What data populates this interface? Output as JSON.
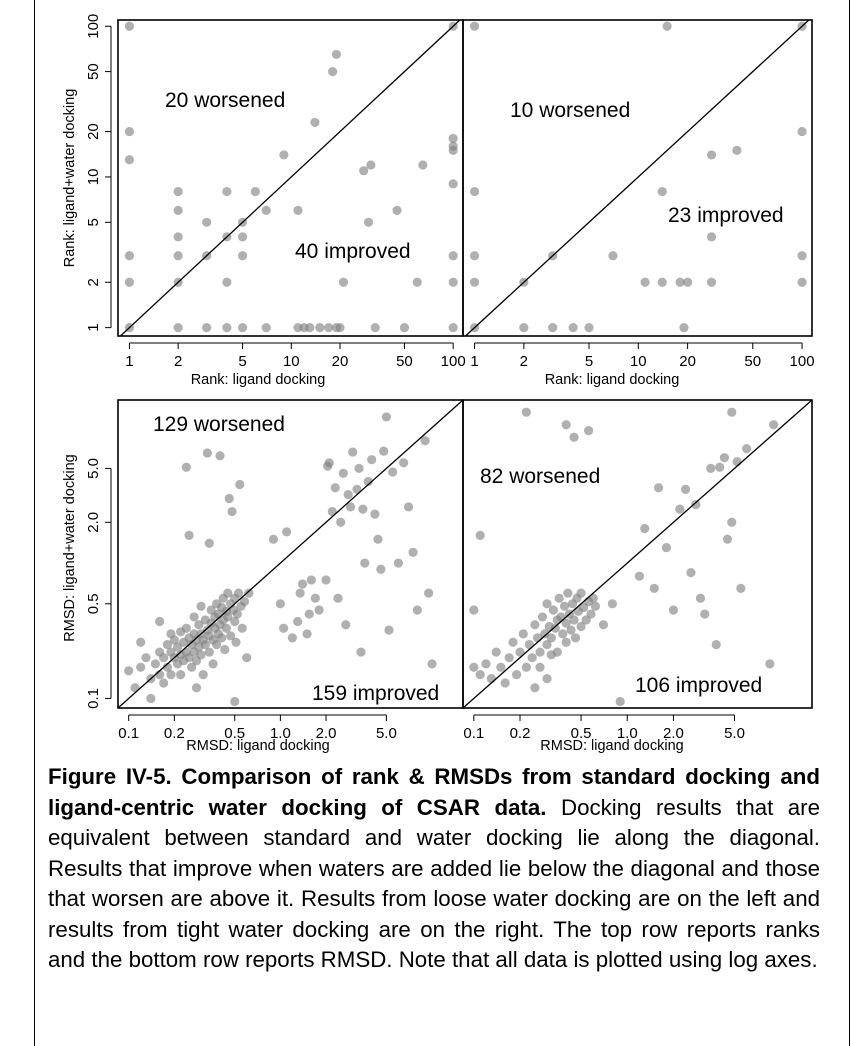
{
  "chart_data": [
    {
      "type": "scatter",
      "panel": "top-left",
      "scale": "log",
      "xlabel": "Rank: ligand docking",
      "ylabel": "Rank: ligand+water docking",
      "xlim": [
        0.85,
        115
      ],
      "ylim": [
        0.88,
        110
      ],
      "xticks": [
        1,
        2,
        5,
        10,
        20,
        50,
        100
      ],
      "yticks": [
        1,
        2,
        5,
        10,
        20,
        50,
        100
      ],
      "xtick_labels": [
        "1",
        "2",
        "5",
        "10",
        "20",
        "50",
        "100"
      ],
      "ytick_labels": [
        "1",
        "2",
        "5",
        "10",
        "20",
        "50",
        "100"
      ],
      "annotations": [
        {
          "text": "20 worsened",
          "region": "upper-left"
        },
        {
          "text": "40 improved",
          "region": "lower-right"
        }
      ],
      "diagonal": true,
      "points": [
        [
          1,
          100
        ],
        [
          1,
          20
        ],
        [
          1,
          13
        ],
        [
          1,
          3
        ],
        [
          1,
          2
        ],
        [
          1,
          1
        ],
        [
          2,
          8
        ],
        [
          2,
          6
        ],
        [
          2,
          4
        ],
        [
          2,
          3
        ],
        [
          2,
          2
        ],
        [
          2,
          1
        ],
        [
          3,
          5
        ],
        [
          3,
          3
        ],
        [
          3,
          1
        ],
        [
          4,
          8
        ],
        [
          4,
          4
        ],
        [
          4,
          2
        ],
        [
          4,
          1
        ],
        [
          5,
          5
        ],
        [
          5,
          3
        ],
        [
          5,
          4
        ],
        [
          5,
          1
        ],
        [
          6,
          8
        ],
        [
          7,
          6
        ],
        [
          7,
          1
        ],
        [
          9,
          14
        ],
        [
          11,
          6
        ],
        [
          11,
          1
        ],
        [
          12,
          1
        ],
        [
          14,
          23
        ],
        [
          13,
          1
        ],
        [
          15,
          1
        ],
        [
          17,
          1
        ],
        [
          18,
          50
        ],
        [
          19,
          65
        ],
        [
          19,
          1
        ],
        [
          20,
          1
        ],
        [
          21,
          2
        ],
        [
          28,
          11
        ],
        [
          30,
          5
        ],
        [
          31,
          12
        ],
        [
          33,
          1
        ],
        [
          45,
          6
        ],
        [
          50,
          1
        ],
        [
          60,
          2
        ],
        [
          65,
          12
        ],
        [
          100,
          100
        ],
        [
          100,
          18
        ],
        [
          100,
          16
        ],
        [
          100,
          15
        ],
        [
          100,
          9
        ],
        [
          100,
          3
        ],
        [
          100,
          2
        ],
        [
          100,
          1
        ]
      ]
    },
    {
      "type": "scatter",
      "panel": "top-right",
      "scale": "log",
      "xlabel": "Rank: ligand docking",
      "ylabel": "",
      "xlim": [
        0.85,
        115
      ],
      "ylim": [
        0.88,
        110
      ],
      "xticks": [
        1,
        2,
        5,
        10,
        20,
        50,
        100
      ],
      "xtick_labels": [
        "1",
        "2",
        "5",
        "10",
        "20",
        "50",
        "100"
      ],
      "annotations": [
        {
          "text": "10 worsened",
          "region": "upper-left"
        },
        {
          "text": "23 improved",
          "region": "lower-right"
        }
      ],
      "diagonal": true,
      "points": [
        [
          1,
          100
        ],
        [
          1,
          8
        ],
        [
          1,
          3
        ],
        [
          1,
          2
        ],
        [
          1,
          1
        ],
        [
          2,
          2
        ],
        [
          2,
          1
        ],
        [
          3,
          3
        ],
        [
          3,
          1
        ],
        [
          4,
          1
        ],
        [
          5,
          1
        ],
        [
          7,
          3
        ],
        [
          11,
          2
        ],
        [
          14,
          8
        ],
        [
          14,
          2
        ],
        [
          15,
          100
        ],
        [
          18,
          2
        ],
        [
          19,
          1
        ],
        [
          20,
          2
        ],
        [
          28,
          14
        ],
        [
          28,
          4
        ],
        [
          28,
          2
        ],
        [
          40,
          15
        ],
        [
          100,
          100
        ],
        [
          100,
          20
        ],
        [
          100,
          3
        ],
        [
          100,
          2
        ]
      ]
    },
    {
      "type": "scatter",
      "panel": "bottom-left",
      "scale": "log",
      "xlabel": "RMSD: ligand docking",
      "ylabel": "RMSD: ligand+water docking",
      "xlim": [
        0.085,
        16
      ],
      "ylim": [
        0.085,
        16
      ],
      "xticks": [
        0.1,
        0.2,
        0.5,
        1.0,
        2.0,
        5.0
      ],
      "yticks": [
        0.1,
        0.5,
        2.0,
        5.0
      ],
      "xtick_labels": [
        "0.1",
        "0.2",
        "0.5",
        "1.0",
        "2.0",
        "5.0"
      ],
      "ytick_labels": [
        "0.1",
        "0.5",
        "2.0",
        "5.0"
      ],
      "annotations": [
        {
          "text": "129 worsened",
          "region": "upper-left"
        },
        {
          "text": "159 improved",
          "region": "lower-right"
        }
      ],
      "diagonal": true,
      "points": [
        [
          0.1,
          0.16
        ],
        [
          0.11,
          0.12
        ],
        [
          0.12,
          0.26
        ],
        [
          0.12,
          0.17
        ],
        [
          0.13,
          0.2
        ],
        [
          0.14,
          0.14
        ],
        [
          0.14,
          0.1
        ],
        [
          0.15,
          0.18
        ],
        [
          0.16,
          0.22
        ],
        [
          0.16,
          0.15
        ],
        [
          0.16,
          0.37
        ],
        [
          0.17,
          0.2
        ],
        [
          0.17,
          0.13
        ],
        [
          0.18,
          0.25
        ],
        [
          0.18,
          0.17
        ],
        [
          0.19,
          0.3
        ],
        [
          0.19,
          0.22
        ],
        [
          0.19,
          0.15
        ],
        [
          0.2,
          0.2
        ],
        [
          0.2,
          0.27
        ],
        [
          0.21,
          0.18
        ],
        [
          0.21,
          0.24
        ],
        [
          0.22,
          0.31
        ],
        [
          0.22,
          0.21
        ],
        [
          0.22,
          0.15
        ],
        [
          0.23,
          0.26
        ],
        [
          0.23,
          0.19
        ],
        [
          0.24,
          0.22
        ],
        [
          0.24,
          0.33
        ],
        [
          0.24,
          5.1
        ],
        [
          0.25,
          0.28
        ],
        [
          0.25,
          0.2
        ],
        [
          0.25,
          1.6
        ],
        [
          0.26,
          0.25
        ],
        [
          0.26,
          0.17
        ],
        [
          0.27,
          0.3
        ],
        [
          0.27,
          0.22
        ],
        [
          0.27,
          0.4
        ],
        [
          0.28,
          0.27
        ],
        [
          0.28,
          0.19
        ],
        [
          0.28,
          0.12
        ],
        [
          0.29,
          0.35
        ],
        [
          0.29,
          0.24
        ],
        [
          0.3,
          0.3
        ],
        [
          0.3,
          0.21
        ],
        [
          0.3,
          0.48
        ],
        [
          0.31,
          0.27
        ],
        [
          0.31,
          0.15
        ],
        [
          0.32,
          0.38
        ],
        [
          0.32,
          0.25
        ],
        [
          0.33,
          0.32
        ],
        [
          0.33,
          6.5
        ],
        [
          0.34,
          0.29
        ],
        [
          0.34,
          0.22
        ],
        [
          0.34,
          1.4
        ],
        [
          0.35,
          0.45
        ],
        [
          0.35,
          0.36
        ],
        [
          0.36,
          0.27
        ],
        [
          0.36,
          0.18
        ],
        [
          0.37,
          0.4
        ],
        [
          0.37,
          0.33
        ],
        [
          0.38,
          0.5
        ],
        [
          0.38,
          0.25
        ],
        [
          0.39,
          0.42
        ],
        [
          0.39,
          0.3
        ],
        [
          0.4,
          6.2
        ],
        [
          0.4,
          0.35
        ],
        [
          0.41,
          0.47
        ],
        [
          0.41,
          0.28
        ],
        [
          0.42,
          0.55
        ],
        [
          0.42,
          0.38
        ],
        [
          0.43,
          0.23
        ],
        [
          0.44,
          0.44
        ],
        [
          0.44,
          0.33
        ],
        [
          0.45,
          0.6
        ],
        [
          0.45,
          0.4
        ],
        [
          0.46,
          3.0
        ],
        [
          0.47,
          0.5
        ],
        [
          0.47,
          0.29
        ],
        [
          0.48,
          2.4
        ],
        [
          0.49,
          0.45
        ],
        [
          0.5,
          0.37
        ],
        [
          0.5,
          0.55
        ],
        [
          0.51,
          0.26
        ],
        [
          0.52,
          0.42
        ],
        [
          0.53,
          0.6
        ],
        [
          0.54,
          3.8
        ],
        [
          0.55,
          0.48
        ],
        [
          0.56,
          0.33
        ],
        [
          0.58,
          0.52
        ],
        [
          0.6,
          0.2
        ],
        [
          0.62,
          0.6
        ],
        [
          0.5,
          0.095
        ],
        [
          0.9,
          1.5
        ],
        [
          1.0,
          0.5
        ],
        [
          1.05,
          0.33
        ],
        [
          1.1,
          1.7
        ],
        [
          1.2,
          0.28
        ],
        [
          1.3,
          0.37
        ],
        [
          1.35,
          0.6
        ],
        [
          1.4,
          0.7
        ],
        [
          1.5,
          0.3
        ],
        [
          1.55,
          0.42
        ],
        [
          1.6,
          0.75
        ],
        [
          1.7,
          0.55
        ],
        [
          1.8,
          0.45
        ],
        [
          2.0,
          0.75
        ],
        [
          2.05,
          5.2
        ],
        [
          2.1,
          5.5
        ],
        [
          2.2,
          2.4
        ],
        [
          2.3,
          3.6
        ],
        [
          2.4,
          0.55
        ],
        [
          2.5,
          2.0
        ],
        [
          2.6,
          4.6
        ],
        [
          2.7,
          0.35
        ],
        [
          2.8,
          3.2
        ],
        [
          2.9,
          2.6
        ],
        [
          3.0,
          6.6
        ],
        [
          3.2,
          3.5
        ],
        [
          3.3,
          5.0
        ],
        [
          3.4,
          0.22
        ],
        [
          3.5,
          2.5
        ],
        [
          3.6,
          1.0
        ],
        [
          3.8,
          4.0
        ],
        [
          4.0,
          5.8
        ],
        [
          4.2,
          2.3
        ],
        [
          4.4,
          1.5
        ],
        [
          4.6,
          0.9
        ],
        [
          4.8,
          6.7
        ],
        [
          5.0,
          12.0
        ],
        [
          5.2,
          0.32
        ],
        [
          5.5,
          4.7
        ],
        [
          6.0,
          1.0
        ],
        [
          6.5,
          5.5
        ],
        [
          7.0,
          2.6
        ],
        [
          7.5,
          1.2
        ],
        [
          8.0,
          0.45
        ],
        [
          9.0,
          8.0
        ],
        [
          10.0,
          0.18
        ],
        [
          9.5,
          0.6
        ]
      ]
    },
    {
      "type": "scatter",
      "panel": "bottom-right",
      "scale": "log",
      "xlabel": "RMSD: ligand docking",
      "ylabel": "",
      "xlim": [
        0.085,
        16
      ],
      "ylim": [
        0.085,
        16
      ],
      "xticks": [
        0.1,
        0.2,
        0.5,
        1.0,
        2.0,
        5.0
      ],
      "xtick_labels": [
        "0.1",
        "0.2",
        "0.5",
        "1.0",
        "2.0",
        "5.0"
      ],
      "annotations": [
        {
          "text": "82 worsened",
          "region": "upper-left"
        },
        {
          "text": "106 improved",
          "region": "lower-right"
        }
      ],
      "diagonal": true,
      "points": [
        [
          0.1,
          0.17
        ],
        [
          0.11,
          0.15
        ],
        [
          0.12,
          0.18
        ],
        [
          0.13,
          0.14
        ],
        [
          0.14,
          0.22
        ],
        [
          0.15,
          0.17
        ],
        [
          0.1,
          0.45
        ],
        [
          0.11,
          1.6
        ],
        [
          0.16,
          0.13
        ],
        [
          0.17,
          0.2
        ],
        [
          0.18,
          0.26
        ],
        [
          0.19,
          0.15
        ],
        [
          0.2,
          0.22
        ],
        [
          0.21,
          0.3
        ],
        [
          0.22,
          0.17
        ],
        [
          0.22,
          13.0
        ],
        [
          0.23,
          0.25
        ],
        [
          0.24,
          0.2
        ],
        [
          0.25,
          0.35
        ],
        [
          0.25,
          0.12
        ],
        [
          0.26,
          0.28
        ],
        [
          0.27,
          0.22
        ],
        [
          0.28,
          0.4
        ],
        [
          0.29,
          0.3
        ],
        [
          0.3,
          0.25
        ],
        [
          0.3,
          0.5
        ],
        [
          0.31,
          0.34
        ],
        [
          0.32,
          0.28
        ],
        [
          0.33,
          0.45
        ],
        [
          0.34,
          0.33
        ],
        [
          0.35,
          0.38
        ],
        [
          0.35,
          0.22
        ],
        [
          0.36,
          0.55
        ],
        [
          0.37,
          0.4
        ],
        [
          0.38,
          0.3
        ],
        [
          0.39,
          0.48
        ],
        [
          0.4,
          0.36
        ],
        [
          0.4,
          10.5
        ],
        [
          0.41,
          0.6
        ],
        [
          0.42,
          0.42
        ],
        [
          0.43,
          0.32
        ],
        [
          0.44,
          0.5
        ],
        [
          0.45,
          0.38
        ],
        [
          0.45,
          8.5
        ],
        [
          0.46,
          0.28
        ],
        [
          0.47,
          0.55
        ],
        [
          0.48,
          0.44
        ],
        [
          0.5,
          0.6
        ],
        [
          0.5,
          0.34
        ],
        [
          0.52,
          0.47
        ],
        [
          0.54,
          0.38
        ],
        [
          0.56,
          0.52
        ],
        [
          0.56,
          9.5
        ],
        [
          0.58,
          0.42
        ],
        [
          0.6,
          0.55
        ],
        [
          0.62,
          0.48
        ],
        [
          0.27,
          0.17
        ],
        [
          0.32,
          0.21
        ],
        [
          0.3,
          0.14
        ],
        [
          0.4,
          0.26
        ],
        [
          0.7,
          0.35
        ],
        [
          0.8,
          0.5
        ],
        [
          0.9,
          0.095
        ],
        [
          1.2,
          0.8
        ],
        [
          1.3,
          1.8
        ],
        [
          1.5,
          0.65
        ],
        [
          1.6,
          3.6
        ],
        [
          1.8,
          1.3
        ],
        [
          2.0,
          0.45
        ],
        [
          2.2,
          2.5
        ],
        [
          2.4,
          3.5
        ],
        [
          2.6,
          0.85
        ],
        [
          2.8,
          2.7
        ],
        [
          3.0,
          0.55
        ],
        [
          3.2,
          0.42
        ],
        [
          3.5,
          5.0
        ],
        [
          3.8,
          0.25
        ],
        [
          4.0,
          5.1
        ],
        [
          4.3,
          6.0
        ],
        [
          4.5,
          1.5
        ],
        [
          4.8,
          2.0
        ],
        [
          5.2,
          5.6
        ],
        [
          5.5,
          0.65
        ],
        [
          4.8,
          13.0
        ],
        [
          6.0,
          7.0
        ],
        [
          8.5,
          0.18
        ],
        [
          9.0,
          10.5
        ]
      ]
    }
  ],
  "caption": {
    "title": "Figure IV-5. Comparison of rank & RMSDs from standard docking and ligand-centric water docking of CSAR data.",
    "body": "Docking results that are equivalent between standard and water docking lie along the diagonal. Results that improve when waters are added lie below the diagonal and those that worsen are above it. Results from loose water docking are on the left and results from tight water docking are on the right. The top row reports ranks and the bottom row reports RMSD. Note that all data is plotted using log axes."
  }
}
